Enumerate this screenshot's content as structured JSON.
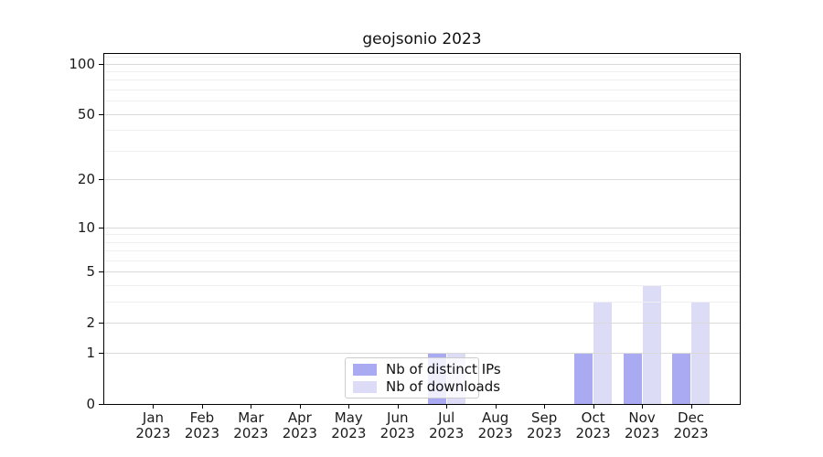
{
  "chart_data": {
    "type": "bar",
    "title": "geojsonio 2023",
    "categories": [
      "Jan",
      "Feb",
      "Mar",
      "Apr",
      "May",
      "Jun",
      "Jul",
      "Aug",
      "Sep",
      "Oct",
      "Nov",
      "Dec"
    ],
    "year": "2023",
    "series": [
      {
        "name": "Nb of distinct IPs",
        "color": "#aaaaf2",
        "values": [
          0,
          0,
          0,
          0,
          0,
          0,
          1,
          0,
          0,
          1,
          1,
          1
        ]
      },
      {
        "name": "Nb of downloads",
        "color": "#dcdcf7",
        "values": [
          0,
          0,
          0,
          0,
          0,
          0,
          1,
          0,
          0,
          3,
          4,
          3
        ]
      }
    ],
    "xlabel": "",
    "ylabel": "",
    "yscale": "log10(1+y)",
    "ylim": [
      0,
      117
    ],
    "yticks": [
      0,
      1,
      2,
      5,
      10,
      20,
      50,
      100
    ],
    "yminorticks": [
      3,
      4,
      6,
      7,
      8,
      9,
      30,
      40,
      60,
      70,
      80,
      90,
      110
    ],
    "grid": true,
    "legend_location": "inside-bottom-center",
    "colors": {
      "major_grid": "#d9d9d9",
      "minor_grid": "#efefef",
      "spine": "#000000",
      "text": "#1a1a1a",
      "legend_border": "#cccccc"
    }
  }
}
